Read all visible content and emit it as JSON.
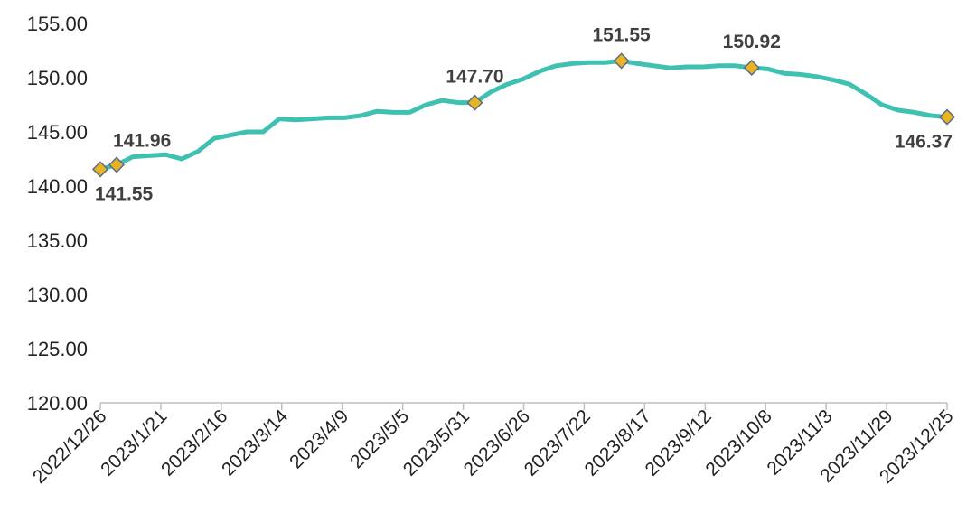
{
  "chart_data": {
    "type": "line",
    "title": "",
    "xlabel": "",
    "ylabel": "",
    "ylim": [
      120,
      155
    ],
    "yticks": [
      "120.00",
      "125.00",
      "130.00",
      "135.00",
      "140.00",
      "145.00",
      "150.00",
      "155.00"
    ],
    "xticks": [
      "2022/12/26",
      "2023/1/21",
      "2023/2/16",
      "2023/3/14",
      "2023/4/9",
      "2023/5/5",
      "2023/5/31",
      "2023/6/26",
      "2023/7/22",
      "2023/8/17",
      "2023/9/12",
      "2023/10/8",
      "2023/11/3",
      "2023/11/29",
      "2023/12/25"
    ],
    "grid": false,
    "legend": "none",
    "line_color": "#3EC1B0",
    "marker_color": "#E8B422",
    "series": [
      {
        "x": [
          "2022/12/26",
          "2023/1/2",
          "2023/1/9",
          "2023/1/16",
          "2023/1/23",
          "2023/1/30",
          "2023/2/6",
          "2023/2/13",
          "2023/2/20",
          "2023/2/27",
          "2023/3/6",
          "2023/3/13",
          "2023/3/20",
          "2023/3/27",
          "2023/4/3",
          "2023/4/10",
          "2023/4/17",
          "2023/4/24",
          "2023/5/1",
          "2023/5/8",
          "2023/5/15",
          "2023/5/22",
          "2023/5/29",
          "2023/6/5",
          "2023/6/12",
          "2023/6/19",
          "2023/6/26",
          "2023/7/3",
          "2023/7/10",
          "2023/7/17",
          "2023/7/24",
          "2023/7/31",
          "2023/8/7",
          "2023/8/14",
          "2023/8/21",
          "2023/8/28",
          "2023/9/4",
          "2023/9/11",
          "2023/9/18",
          "2023/9/25",
          "2023/10/2",
          "2023/10/9",
          "2023/10/16",
          "2023/10/23",
          "2023/10/30",
          "2023/11/6",
          "2023/11/13",
          "2023/11/20",
          "2023/11/27",
          "2023/12/4",
          "2023/12/11",
          "2023/12/18",
          "2023/12/25"
        ],
        "values": [
          141.55,
          141.96,
          142.7,
          142.8,
          142.9,
          142.5,
          143.2,
          144.4,
          144.7,
          145.0,
          145.0,
          146.2,
          146.1,
          146.2,
          146.3,
          146.3,
          146.5,
          146.9,
          146.8,
          146.8,
          147.5,
          147.9,
          147.7,
          147.7,
          148.7,
          149.4,
          149.9,
          150.6,
          151.1,
          151.3,
          151.4,
          151.4,
          151.55,
          151.3,
          151.1,
          150.9,
          151.0,
          151.0,
          151.1,
          151.1,
          150.92,
          150.8,
          150.4,
          150.3,
          150.1,
          149.8,
          149.4,
          148.5,
          147.5,
          147.0,
          146.8,
          146.5,
          146.37
        ]
      }
    ],
    "markers": [
      {
        "x": "2022/12/26",
        "value": 141.55,
        "label": "141.55",
        "label_pos": "below"
      },
      {
        "x": "2023/1/2",
        "value": 141.96,
        "label": "141.96",
        "label_pos": "above"
      },
      {
        "x": "2023/6/5",
        "value": 147.7,
        "label": "147.70",
        "label_pos": "above"
      },
      {
        "x": "2023/8/7",
        "value": 151.55,
        "label": "151.55",
        "label_pos": "above"
      },
      {
        "x": "2023/10/2",
        "value": 150.92,
        "label": "150.92",
        "label_pos": "above"
      },
      {
        "x": "2023/12/25",
        "value": 146.37,
        "label": "146.37",
        "label_pos": "below"
      }
    ]
  }
}
